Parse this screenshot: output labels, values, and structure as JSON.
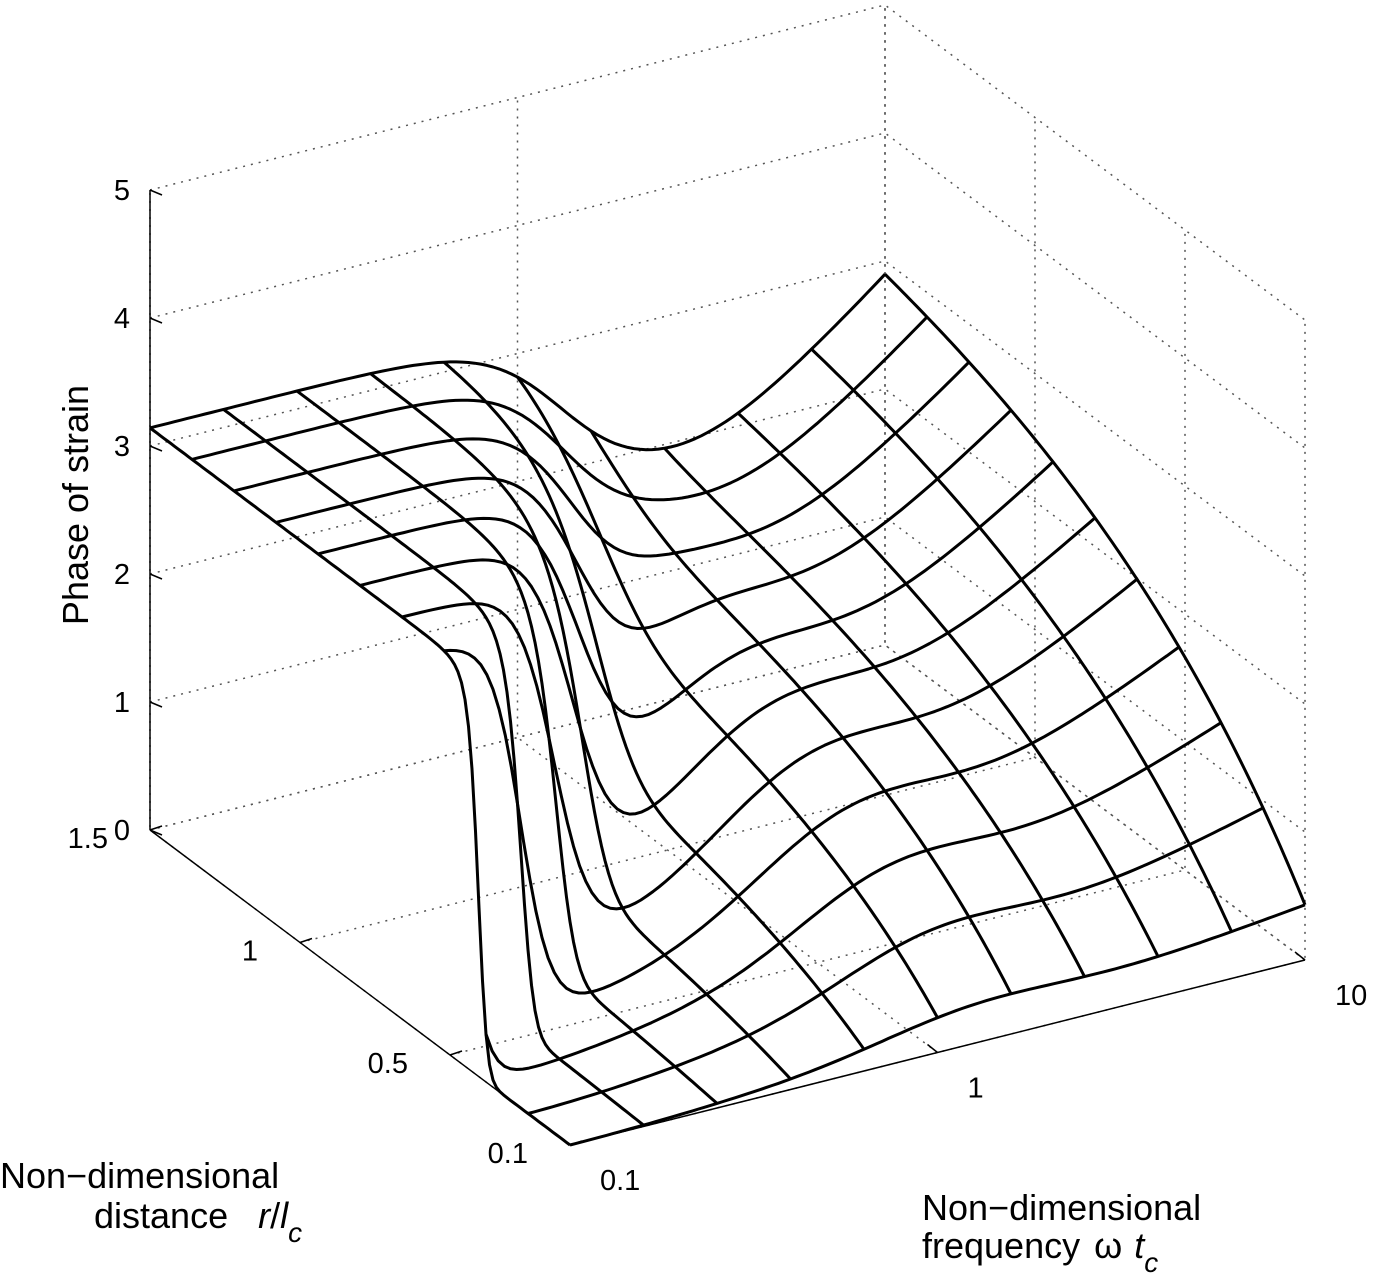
{
  "chart_data": {
    "type": "surface",
    "title": "",
    "zlabel": "Phase of strain",
    "ylabel": {
      "line1": "Non−dimensional",
      "line2": "distance",
      "symbol_r": "r",
      "slash": "/",
      "symbol_l": "l",
      "sub": "c"
    },
    "xlabel": {
      "line1": "Non−dimensional",
      "line2": "frequency",
      "symbol_omega": "ω",
      "symbol_t": "t",
      "sub": "c"
    },
    "z_ticks": [
      "0",
      "1",
      "2",
      "3",
      "4",
      "5"
    ],
    "y_ticks": [
      "0.1",
      "0.5",
      "1",
      "1.5"
    ],
    "x_ticks": [
      "0.1",
      "1",
      "10"
    ],
    "x_scale": "log",
    "x_range": [
      0.1,
      10
    ],
    "y_range": [
      0.1,
      1.5
    ],
    "z_range": [
      0,
      5
    ],
    "grid": true,
    "mesh": {
      "x_log10": [
        -1.0,
        -0.8,
        -0.6,
        -0.4,
        -0.2,
        0.0,
        0.2,
        0.4,
        0.6,
        0.8,
        1.0
      ],
      "y": [
        0.1,
        0.24,
        0.38,
        0.52,
        0.66,
        0.8,
        0.94,
        1.08,
        1.22,
        1.36,
        1.5
      ]
    }
  }
}
